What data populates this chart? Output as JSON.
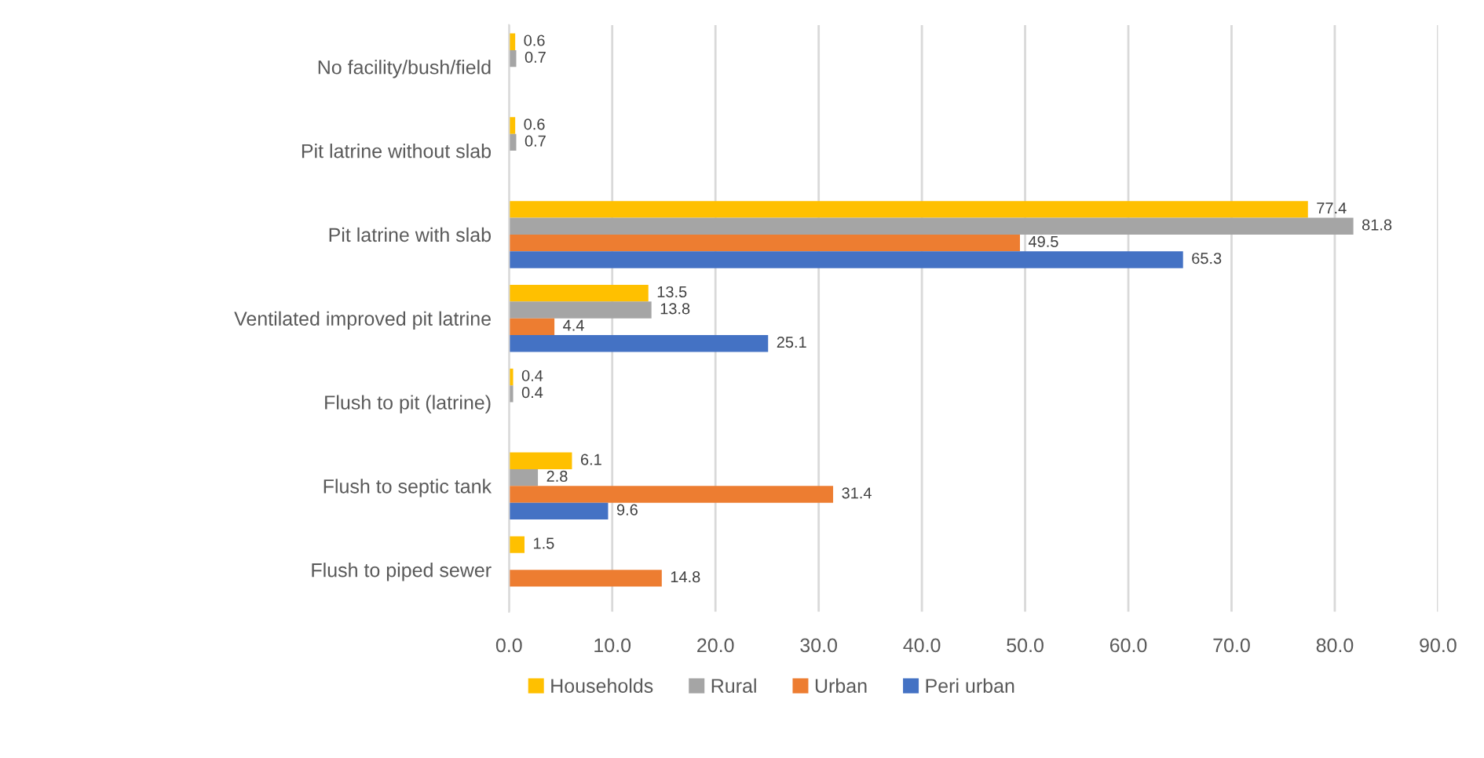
{
  "chart_data": {
    "type": "bar",
    "orientation": "horizontal",
    "categories": [
      "No facility/bush/field",
      "Pit latrine without slab",
      "Pit latrine with slab",
      "Ventilated improved pit latrine",
      "Flush to pit (latrine)",
      "Flush to septic tank",
      "Flush to piped sewer"
    ],
    "series": [
      {
        "name": "Households",
        "color": "#ffc000",
        "values": [
          0.6,
          0.6,
          77.4,
          13.5,
          0.4,
          6.1,
          1.5
        ]
      },
      {
        "name": "Rural",
        "color": "#a5a5a5",
        "values": [
          0.7,
          0.7,
          81.8,
          13.8,
          0.4,
          2.8,
          null
        ]
      },
      {
        "name": "Urban",
        "color": "#ed7d31",
        "values": [
          null,
          null,
          49.5,
          4.4,
          null,
          31.4,
          14.8
        ]
      },
      {
        "name": "Peri urban",
        "color": "#4472c4",
        "values": [
          null,
          null,
          65.3,
          25.1,
          null,
          9.6,
          null
        ]
      }
    ],
    "xlim": [
      0,
      90
    ],
    "xticks": [
      {
        "value": 0,
        "label": "0.0"
      },
      {
        "value": 10,
        "label": "10.0"
      },
      {
        "value": 20,
        "label": "20.0"
      },
      {
        "value": 30,
        "label": "30.0"
      },
      {
        "value": 40,
        "label": "40.0"
      },
      {
        "value": 50,
        "label": "50.0"
      },
      {
        "value": 60,
        "label": "60.0"
      },
      {
        "value": 70,
        "label": "70.0"
      },
      {
        "value": 80,
        "label": "80.0"
      },
      {
        "value": 90,
        "label": "90.0"
      }
    ],
    "grid": "x",
    "legend": "bottom",
    "data_labels": true
  }
}
